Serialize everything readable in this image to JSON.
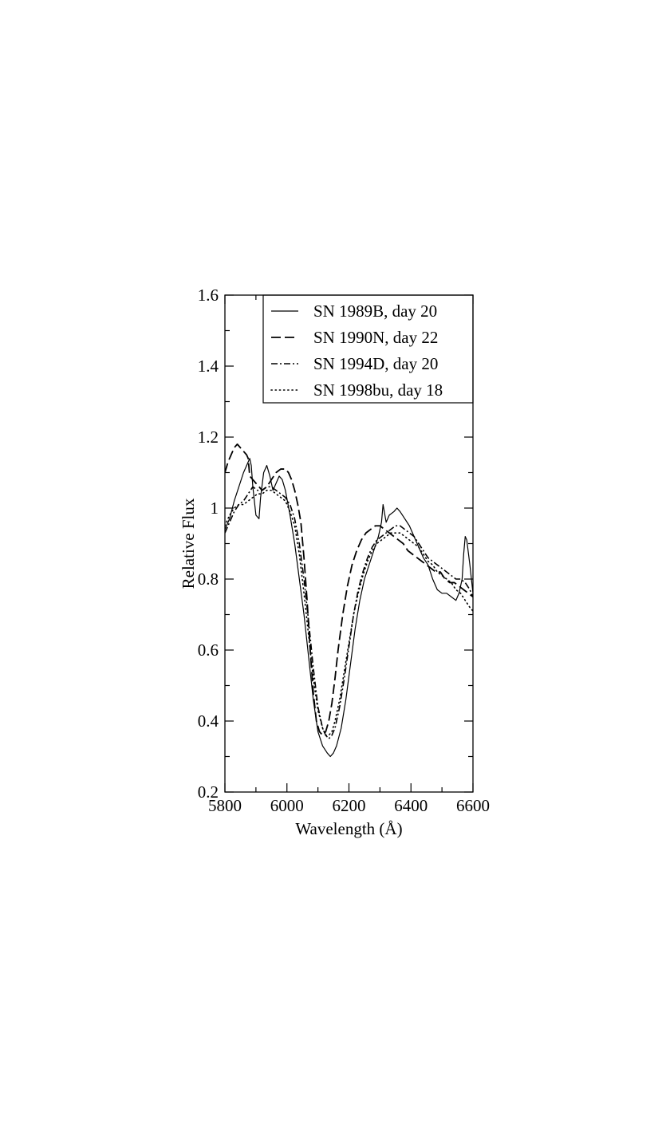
{
  "chart_data": {
    "type": "line",
    "title": "",
    "xlabel": "Wavelength (Å)",
    "ylabel": "Relative Flux",
    "xlim": [
      5800,
      6600
    ],
    "ylim": [
      0.2,
      1.6
    ],
    "x_ticks": [
      5800,
      6000,
      6200,
      6400,
      6600
    ],
    "x_tick_labels": [
      "5800",
      "6000",
      "6200",
      "6400",
      "6600"
    ],
    "y_ticks": [
      0.2,
      0.4,
      0.6,
      0.8,
      1.0,
      1.2,
      1.4,
      1.6
    ],
    "y_tick_labels": [
      "0.2",
      "0.4",
      "0.6",
      "0.8",
      "1",
      "1.2",
      "1.4",
      "1.6"
    ],
    "grid": false,
    "legend_position": "top-right",
    "series": [
      {
        "name": "SN 1989B, day 20",
        "style": "solid",
        "x": [
          5800,
          5815,
          5830,
          5845,
          5860,
          5870,
          5880,
          5885,
          5890,
          5900,
          5910,
          5915,
          5925,
          5935,
          5945,
          5955,
          5965,
          5975,
          5985,
          5995,
          6010,
          6025,
          6040,
          6055,
          6070,
          6085,
          6100,
          6115,
          6130,
          6140,
          6150,
          6160,
          6175,
          6190,
          6205,
          6220,
          6235,
          6250,
          6265,
          6280,
          6295,
          6305,
          6310,
          6320,
          6330,
          6345,
          6355,
          6365,
          6380,
          6395,
          6410,
          6425,
          6440,
          6455,
          6470,
          6485,
          6500,
          6515,
          6530,
          6545,
          6555,
          6565,
          6570,
          6575,
          6580,
          6590,
          6600
        ],
        "values": [
          0.94,
          0.97,
          1.02,
          1.06,
          1.1,
          1.12,
          1.14,
          1.12,
          1.06,
          0.98,
          0.97,
          1.03,
          1.1,
          1.12,
          1.09,
          1.05,
          1.07,
          1.09,
          1.08,
          1.05,
          0.98,
          0.9,
          0.8,
          0.7,
          0.58,
          0.46,
          0.37,
          0.33,
          0.31,
          0.3,
          0.31,
          0.33,
          0.38,
          0.46,
          0.56,
          0.66,
          0.74,
          0.8,
          0.84,
          0.88,
          0.92,
          0.96,
          1.01,
          0.96,
          0.98,
          0.99,
          1.0,
          0.99,
          0.97,
          0.95,
          0.92,
          0.89,
          0.86,
          0.84,
          0.8,
          0.77,
          0.76,
          0.76,
          0.75,
          0.74,
          0.76,
          0.8,
          0.87,
          0.92,
          0.91,
          0.84,
          0.76
        ]
      },
      {
        "name": "SN 1990N, day 22",
        "style": "dashed",
        "x": [
          5800,
          5810,
          5820,
          5830,
          5840,
          5850,
          5860,
          5870,
          5875,
          5880,
          5890,
          5900,
          5910,
          5920,
          5935,
          5950,
          5965,
          5980,
          5995,
          6005,
          6015,
          6025,
          6035,
          6045,
          6055,
          6065,
          6075,
          6085,
          6095,
          6105,
          6115,
          6125,
          6135,
          6145,
          6155,
          6165,
          6180,
          6195,
          6210,
          6225,
          6240,
          6255,
          6270,
          6285,
          6300,
          6315,
          6330,
          6345,
          6360,
          6375,
          6390,
          6405,
          6420,
          6435,
          6450,
          6465,
          6480,
          6495,
          6510,
          6525,
          6540,
          6555,
          6570,
          6585,
          6600
        ],
        "values": [
          1.1,
          1.13,
          1.15,
          1.17,
          1.18,
          1.17,
          1.16,
          1.15,
          1.14,
          1.09,
          1.08,
          1.07,
          1.06,
          1.05,
          1.06,
          1.08,
          1.1,
          1.11,
          1.11,
          1.1,
          1.08,
          1.05,
          1.01,
          0.96,
          0.86,
          0.74,
          0.6,
          0.48,
          0.4,
          0.37,
          0.36,
          0.37,
          0.4,
          0.45,
          0.52,
          0.6,
          0.7,
          0.78,
          0.84,
          0.88,
          0.91,
          0.93,
          0.94,
          0.95,
          0.95,
          0.94,
          0.93,
          0.92,
          0.91,
          0.9,
          0.88,
          0.87,
          0.86,
          0.85,
          0.84,
          0.83,
          0.82,
          0.82,
          0.8,
          0.79,
          0.79,
          0.78,
          0.77,
          0.76,
          0.75
        ]
      },
      {
        "name": "SN 1994D, day 20",
        "style": "dashdot",
        "x": [
          5800,
          5815,
          5830,
          5845,
          5860,
          5875,
          5890,
          5905,
          5920,
          5935,
          5950,
          5965,
          5980,
          5995,
          6010,
          6025,
          6040,
          6055,
          6070,
          6085,
          6100,
          6115,
          6125,
          6135,
          6145,
          6155,
          6170,
          6185,
          6200,
          6215,
          6230,
          6245,
          6260,
          6275,
          6290,
          6305,
          6320,
          6335,
          6350,
          6365,
          6380,
          6395,
          6410,
          6425,
          6440,
          6455,
          6470,
          6485,
          6500,
          6515,
          6530,
          6545,
          6560,
          6575,
          6590,
          6600
        ],
        "values": [
          0.93,
          0.96,
          0.99,
          1.01,
          1.02,
          1.04,
          1.06,
          1.05,
          1.05,
          1.06,
          1.06,
          1.05,
          1.04,
          1.03,
          1.01,
          0.97,
          0.9,
          0.8,
          0.68,
          0.55,
          0.44,
          0.38,
          0.36,
          0.35,
          0.36,
          0.38,
          0.44,
          0.52,
          0.61,
          0.7,
          0.77,
          0.82,
          0.86,
          0.89,
          0.91,
          0.92,
          0.93,
          0.94,
          0.95,
          0.95,
          0.94,
          0.93,
          0.92,
          0.9,
          0.88,
          0.86,
          0.85,
          0.84,
          0.83,
          0.82,
          0.81,
          0.8,
          0.8,
          0.79,
          0.77,
          0.75
        ]
      },
      {
        "name": "SN 1998bu, day 18",
        "style": "dotted",
        "x": [
          5800,
          5815,
          5830,
          5845,
          5860,
          5875,
          5890,
          5905,
          5920,
          5935,
          5950,
          5965,
          5980,
          5995,
          6010,
          6025,
          6040,
          6055,
          6070,
          6085,
          6100,
          6115,
          6125,
          6135,
          6145,
          6155,
          6170,
          6185,
          6200,
          6215,
          6230,
          6245,
          6260,
          6275,
          6290,
          6305,
          6320,
          6335,
          6350,
          6365,
          6380,
          6395,
          6410,
          6425,
          6440,
          6455,
          6470,
          6485,
          6500,
          6515,
          6530,
          6545,
          6560,
          6575,
          6590,
          6600
        ],
        "values": [
          0.95,
          0.98,
          1.0,
          1.01,
          1.01,
          1.02,
          1.03,
          1.04,
          1.04,
          1.05,
          1.05,
          1.04,
          1.03,
          1.02,
          0.99,
          0.95,
          0.87,
          0.76,
          0.64,
          0.52,
          0.43,
          0.38,
          0.36,
          0.36,
          0.37,
          0.4,
          0.46,
          0.54,
          0.62,
          0.7,
          0.76,
          0.81,
          0.85,
          0.88,
          0.9,
          0.91,
          0.92,
          0.93,
          0.93,
          0.93,
          0.92,
          0.91,
          0.9,
          0.89,
          0.87,
          0.85,
          0.84,
          0.82,
          0.81,
          0.8,
          0.79,
          0.77,
          0.76,
          0.74,
          0.72,
          0.71
        ]
      }
    ]
  }
}
